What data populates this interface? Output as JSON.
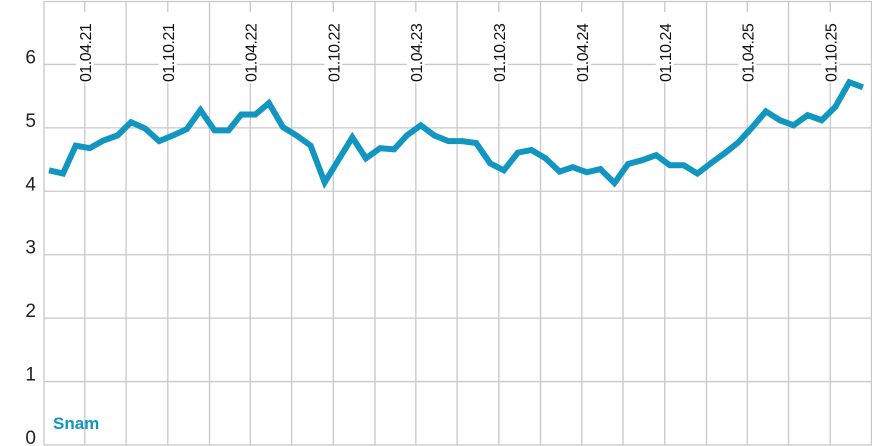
{
  "chart_data": {
    "type": "line",
    "title": "",
    "xlabel": "",
    "ylabel": "",
    "ylim": [
      0,
      7
    ],
    "xlim": [
      "2021-01-01",
      "2026-01-01"
    ],
    "grid": true,
    "y_ticks": [
      "0",
      "1",
      "2",
      "3",
      "4",
      "5",
      "6"
    ],
    "x_ticks": [
      {
        "date": "2021-04-01",
        "label": "01.04.21"
      },
      {
        "date": "2021-10-01",
        "label": "01.10.21"
      },
      {
        "date": "2022-04-01",
        "label": "01.04.22"
      },
      {
        "date": "2022-10-01",
        "label": "01.10.22"
      },
      {
        "date": "2023-04-01",
        "label": "01.04.23"
      },
      {
        "date": "2023-10-01",
        "label": "01.10.23"
      },
      {
        "date": "2024-04-01",
        "label": "01.04.24"
      },
      {
        "date": "2024-10-01",
        "label": "01.10.24"
      },
      {
        "date": "2025-04-01",
        "label": "01.04.25"
      },
      {
        "date": "2025-10-01",
        "label": "01.10.25"
      }
    ],
    "series": [
      {
        "name": "Snam",
        "color": "#1196c1",
        "x": [
          "2021-01",
          "2021-02",
          "2021-03",
          "2021-04",
          "2021-05",
          "2021-06",
          "2021-07",
          "2021-08",
          "2021-09",
          "2021-10",
          "2021-11",
          "2021-12",
          "2022-01",
          "2022-02",
          "2022-03",
          "2022-04",
          "2022-05",
          "2022-06",
          "2022-07",
          "2022-08",
          "2022-09",
          "2022-10",
          "2022-11",
          "2022-12",
          "2023-01",
          "2023-02",
          "2023-03",
          "2023-04",
          "2023-05",
          "2023-06",
          "2023-07",
          "2023-08",
          "2023-09",
          "2023-10",
          "2023-11",
          "2023-12",
          "2024-01",
          "2024-02",
          "2024-03",
          "2024-04",
          "2024-05",
          "2024-06",
          "2024-07",
          "2024-08",
          "2024-09",
          "2024-10",
          "2024-11",
          "2024-12",
          "2025-01",
          "2025-02",
          "2025-03",
          "2025-04",
          "2025-05",
          "2025-06",
          "2025-07",
          "2025-08",
          "2025-09",
          "2025-10",
          "2025-11",
          "2025-12"
        ],
        "values": [
          4.33,
          4.28,
          4.72,
          4.68,
          4.8,
          4.88,
          5.09,
          4.99,
          4.79,
          4.88,
          4.98,
          5.28,
          4.96,
          4.96,
          5.21,
          5.21,
          5.39,
          5.01,
          4.88,
          4.72,
          4.14,
          4.49,
          4.85,
          4.52,
          4.68,
          4.66,
          4.88,
          5.04,
          4.88,
          4.79,
          4.79,
          4.76,
          4.44,
          4.33,
          4.61,
          4.65,
          4.52,
          4.31,
          4.38,
          4.3,
          4.35,
          4.13,
          4.43,
          4.49,
          4.57,
          4.41,
          4.41,
          4.28,
          4.45,
          4.61,
          4.77,
          5.01,
          5.26,
          5.12,
          5.04,
          5.2,
          5.12,
          5.33,
          5.72,
          5.64
        ]
      }
    ]
  }
}
